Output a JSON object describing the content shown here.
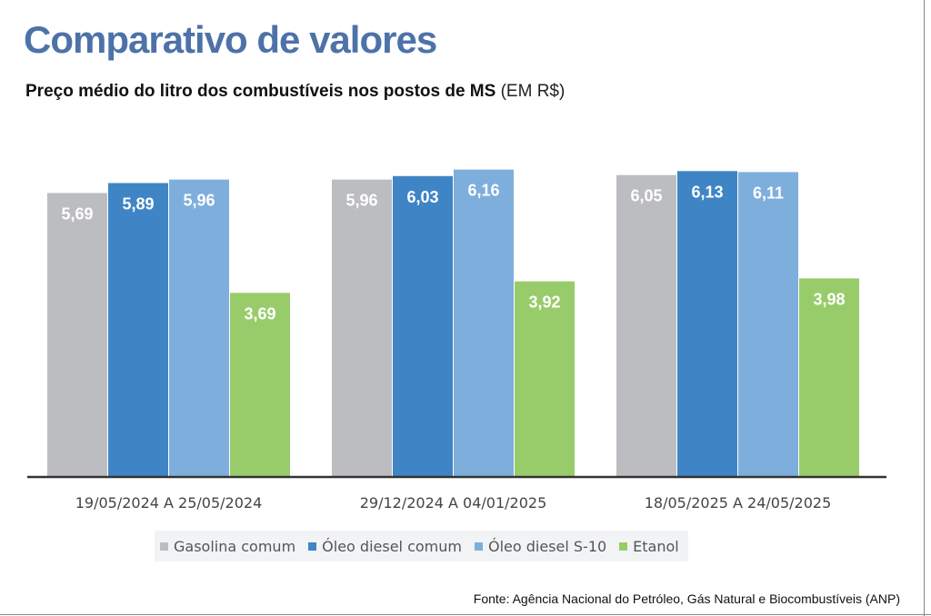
{
  "header": {
    "title": "Comparativo de valores",
    "subtitle": "Preço médio do litro dos combustíveis nos postos de MS",
    "unit": "(EM R$)"
  },
  "source": "Fonte: Agência Nacional do Petróleo, Gás Natural e Biocombustíveis (ANP)",
  "colors": {
    "Gasolina comum": "#bcbdc0",
    "Óleo diesel comum": "#3f85c6",
    "Óleo diesel S-10": "#7eaedc",
    "Etanol": "#98cc6a"
  },
  "chart_data": {
    "type": "bar",
    "categories": [
      "19/05/2024 A 25/05/2024",
      "29/12/2024 A 04/01/2025",
      "18/05/2025 A 24/05/2025"
    ],
    "series": [
      {
        "name": "Gasolina comum",
        "values": [
          5.69,
          5.96,
          6.05
        ],
        "labels": [
          "5,69",
          "5,96",
          "6,05"
        ]
      },
      {
        "name": "Óleo diesel comum",
        "values": [
          5.89,
          6.03,
          6.13
        ],
        "labels": [
          "5,89",
          "6,03",
          "6,13"
        ]
      },
      {
        "name": "Óleo diesel S-10",
        "values": [
          5.96,
          6.16,
          6.11
        ],
        "labels": [
          "5,96",
          "6,16",
          "6,11"
        ]
      },
      {
        "name": "Etanol",
        "values": [
          3.69,
          3.92,
          3.98
        ],
        "labels": [
          "3,69",
          "3,92",
          "3,98"
        ]
      }
    ],
    "title": "Preço médio do litro dos combustíveis nos postos de MS",
    "ylabel": "",
    "xlabel": "",
    "ylim": [
      0,
      6.9
    ],
    "grid": false,
    "legend": "bottom"
  }
}
